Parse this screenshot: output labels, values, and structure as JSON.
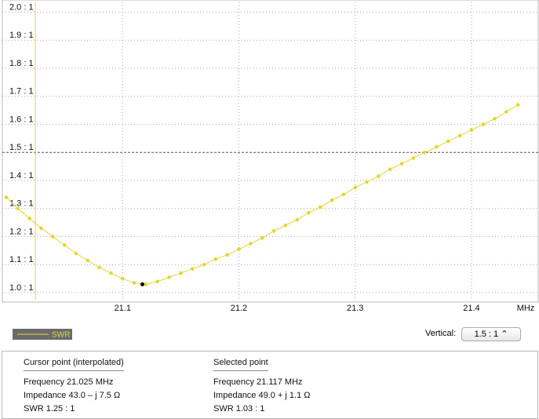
{
  "chart_data": {
    "type": "line",
    "x_label": "MHz",
    "x": [
      21.0,
      21.01,
      21.02,
      21.03,
      21.04,
      21.05,
      21.06,
      21.07,
      21.08,
      21.09,
      21.1,
      21.11,
      21.12,
      21.13,
      21.14,
      21.15,
      21.16,
      21.17,
      21.18,
      21.19,
      21.2,
      21.21,
      21.22,
      21.23,
      21.24,
      21.25,
      21.26,
      21.27,
      21.28,
      21.29,
      21.3,
      21.31,
      21.32,
      21.33,
      21.34,
      21.35,
      21.36,
      21.37,
      21.38,
      21.39,
      21.4,
      21.41,
      21.42,
      21.43,
      21.44
    ],
    "series": [
      {
        "name": "SWR",
        "color": "#e6d534",
        "values": [
          1.34,
          1.3,
          1.265,
          1.23,
          1.2,
          1.17,
          1.14,
          1.115,
          1.09,
          1.07,
          1.05,
          1.035,
          1.03,
          1.04,
          1.055,
          1.07,
          1.085,
          1.1,
          1.12,
          1.135,
          1.155,
          1.175,
          1.195,
          1.22,
          1.24,
          1.26,
          1.285,
          1.305,
          1.33,
          1.35,
          1.375,
          1.395,
          1.415,
          1.44,
          1.46,
          1.48,
          1.5,
          1.52,
          1.54,
          1.56,
          1.58,
          1.6,
          1.62,
          1.645,
          1.67
        ]
      }
    ],
    "xlim": [
      21.0,
      21.456
    ],
    "xticks": [
      21.1,
      21.2,
      21.3,
      21.4
    ],
    "ylim": [
      0.975,
      2.035
    ],
    "yticks": [
      {
        "value": 1.0,
        "label": "1.0 : 1"
      },
      {
        "value": 1.1,
        "label": "1.1 : 1"
      },
      {
        "value": 1.2,
        "label": "1.2 : 1"
      },
      {
        "value": 1.3,
        "label": "1.3 : 1"
      },
      {
        "value": 1.4,
        "label": "1.4 : 1"
      },
      {
        "value": 1.5,
        "label": "1.5 : 1"
      },
      {
        "value": 1.6,
        "label": "1.6 : 1"
      },
      {
        "value": 1.7,
        "label": "1.7 : 1"
      },
      {
        "value": 1.8,
        "label": "1.8 : 1"
      },
      {
        "value": 1.9,
        "label": "1.9 : 1"
      },
      {
        "value": 2.0,
        "label": "2.0 : 1"
      }
    ],
    "grid": true,
    "reference_line": 1.5,
    "cursor_x": 21.025,
    "selected_point": {
      "x": 21.117,
      "y": 1.03
    }
  },
  "controls": {
    "vertical_label": "Vertical:",
    "vertical_value": "1.5 : 1"
  },
  "info": {
    "cursor": {
      "title": "Cursor point (interpolated)",
      "frequency": "Frequency  21.025 MHz",
      "impedance": "Impedance 43.0 – j 7.5 Ω",
      "swr": "SWR  1.25 : 1"
    },
    "selected": {
      "title": "Selected point",
      "frequency": "Frequency  21.117 MHz",
      "impedance": "Impedance 49.0 + j 1.1 Ω",
      "swr": "SWR  1.03 : 1"
    }
  }
}
